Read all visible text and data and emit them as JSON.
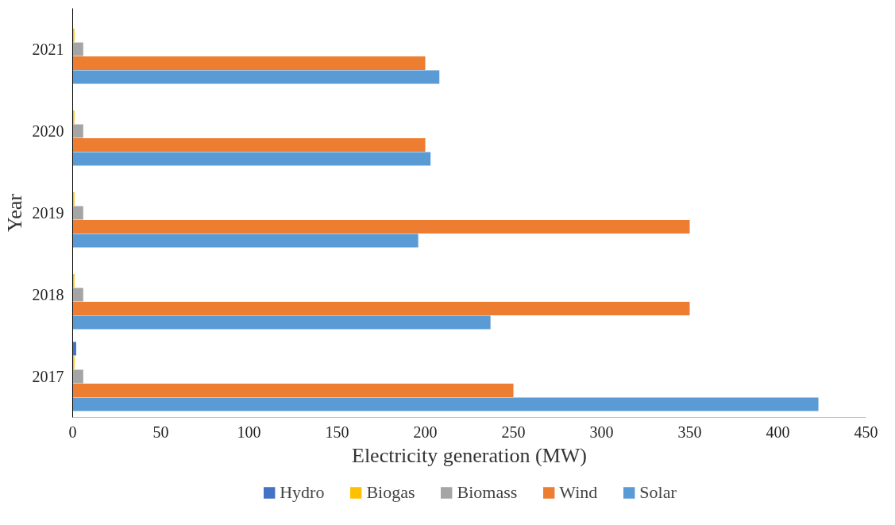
{
  "chart_data": {
    "type": "bar",
    "orientation": "horizontal",
    "xlabel": "Electricity generation (MW)",
    "ylabel": "Year",
    "categories": [
      "2021",
      "2020",
      "2019",
      "2018",
      "2017"
    ],
    "series": [
      {
        "name": "Hydro",
        "color": "#4472c4",
        "values": [
          0,
          0,
          0,
          0,
          2
        ]
      },
      {
        "name": "Biogas",
        "color": "#ffc000",
        "values": [
          1,
          1,
          1,
          1,
          1
        ]
      },
      {
        "name": "Biomass",
        "color": "#a5a5a5",
        "values": [
          6,
          6,
          6,
          6,
          6
        ]
      },
      {
        "name": "Wind",
        "color": "#ed7d31",
        "values": [
          200,
          200,
          350,
          350,
          250
        ]
      },
      {
        "name": "Solar",
        "color": "#5b9bd5",
        "values": [
          208,
          203,
          196,
          237,
          423
        ]
      }
    ],
    "xlim": [
      0,
      450
    ],
    "xticks": [
      0,
      50,
      100,
      150,
      200,
      250,
      300,
      350,
      400,
      450
    ],
    "grid": false,
    "legend": "bottom"
  }
}
